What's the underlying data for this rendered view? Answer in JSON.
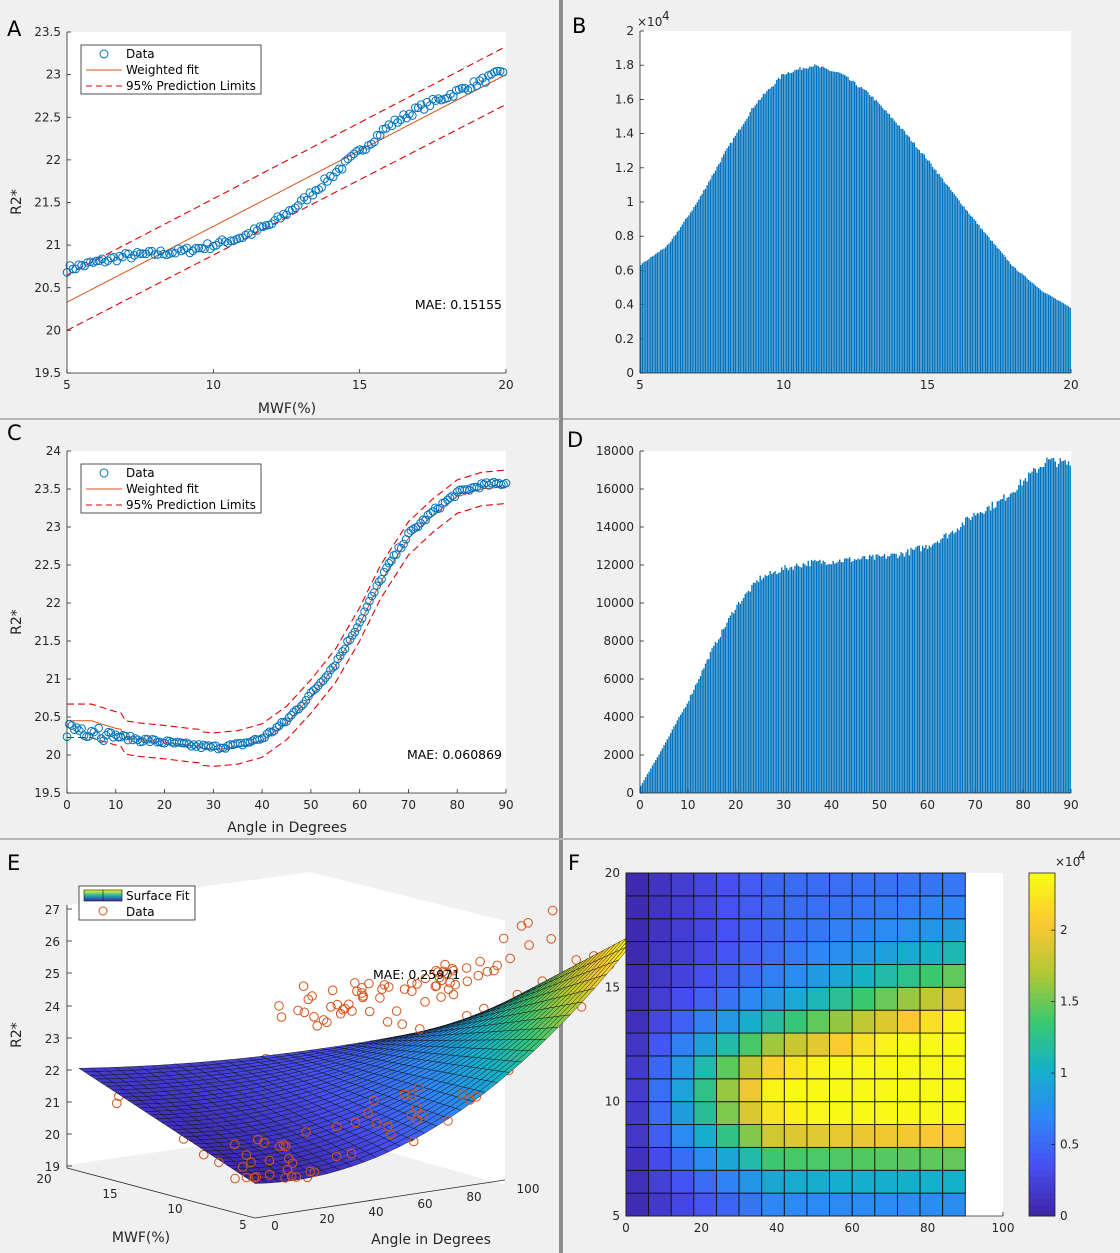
{
  "panels": {
    "A": {
      "label": "A",
      "chart_data": {
        "type": "scatter",
        "xlabel": "MWF(%)",
        "ylabel": "R2*",
        "xlim": [
          5,
          20
        ],
        "ylim": [
          19.5,
          23.5
        ],
        "xticks": [
          "5",
          "10",
          "15",
          "20"
        ],
        "yticks": [
          "19.5",
          "20",
          "20.5",
          "21",
          "21.5",
          "22",
          "22.5",
          "23",
          "23.5"
        ],
        "legend": [
          "Data",
          "Weighted fit",
          "95% Prediction Limits"
        ],
        "legend_position": "top-left",
        "annotation": "MAE: 0.15155",
        "fit_line": {
          "x": [
            5,
            20
          ],
          "y": [
            20.33,
            23.0
          ]
        },
        "prediction_limits": {
          "upper": [
            20.65,
            23.33
          ],
          "lower": [
            20.0,
            22.65
          ]
        },
        "data_trend": {
          "x": [
            5,
            6,
            7,
            8,
            9,
            10,
            11,
            12,
            13,
            14,
            15,
            16,
            17,
            18,
            19,
            20
          ],
          "y": [
            20.72,
            20.8,
            20.87,
            20.9,
            20.93,
            21.0,
            21.1,
            21.25,
            21.5,
            21.8,
            22.1,
            22.4,
            22.6,
            22.75,
            22.9,
            23.05
          ]
        }
      }
    },
    "B": {
      "label": "B",
      "chart_data": {
        "type": "bar",
        "xlim": [
          5,
          20
        ],
        "ylim": [
          0,
          20000
        ],
        "xticks": [
          "5",
          "10",
          "15",
          "20"
        ],
        "yticks": [
          "0",
          "0.2",
          "0.4",
          "0.6",
          "0.8",
          "1",
          "1.2",
          "1.4",
          "1.6",
          "1.8",
          "2"
        ],
        "exponent": "×10",
        "exponent_power": "4",
        "bin_centers": [
          5,
          6,
          7,
          8,
          9,
          10,
          11,
          12,
          13,
          14,
          15,
          16,
          17,
          18,
          19,
          20
        ],
        "values": [
          6300,
          7500,
          10000,
          13000,
          15700,
          17500,
          18000,
          17500,
          16300,
          14500,
          12500,
          10300,
          8200,
          6200,
          4800,
          3800
        ]
      }
    },
    "C": {
      "label": "C",
      "chart_data": {
        "type": "scatter",
        "xlabel": "Angle in Degrees",
        "ylabel": "R2*",
        "xlim": [
          0,
          90
        ],
        "ylim": [
          19.5,
          24
        ],
        "xticks": [
          "0",
          "10",
          "20",
          "30",
          "40",
          "50",
          "60",
          "70",
          "80",
          "90"
        ],
        "yticks": [
          "19.5",
          "20",
          "20.5",
          "21",
          "21.5",
          "22",
          "22.5",
          "23",
          "23.5",
          "24"
        ],
        "legend": [
          "Data",
          "Weighted fit",
          "95% Prediction Limits"
        ],
        "legend_position": "top-left",
        "annotation": "MAE: 0.060869",
        "data_trend": {
          "x": [
            0,
            5,
            10,
            15,
            20,
            25,
            30,
            35,
            40,
            45,
            50,
            55,
            60,
            65,
            70,
            75,
            80,
            85,
            90
          ],
          "y": [
            20.35,
            20.35,
            20.25,
            20.2,
            20.17,
            20.13,
            20.1,
            20.13,
            20.22,
            20.45,
            20.8,
            21.2,
            21.75,
            22.4,
            22.9,
            23.2,
            23.45,
            23.55,
            23.58
          ]
        },
        "band_halfwidth": 0.22
      }
    },
    "D": {
      "label": "D",
      "chart_data": {
        "type": "bar",
        "xlim": [
          0,
          90
        ],
        "ylim": [
          0,
          18000
        ],
        "xticks": [
          "0",
          "10",
          "20",
          "30",
          "40",
          "50",
          "60",
          "70",
          "80",
          "90"
        ],
        "yticks": [
          "0",
          "2000",
          "4000",
          "6000",
          "8000",
          "10000",
          "12000",
          "14000",
          "16000",
          "18000"
        ],
        "bin_centers": [
          0,
          5,
          10,
          15,
          20,
          25,
          30,
          35,
          40,
          45,
          50,
          55,
          60,
          65,
          70,
          75,
          80,
          85,
          90
        ],
        "values": [
          300,
          2500,
          4800,
          7500,
          9800,
          11300,
          11800,
          12100,
          12200,
          12300,
          12400,
          12600,
          13000,
          13700,
          14700,
          15300,
          16400,
          17500,
          17300
        ]
      }
    },
    "E": {
      "label": "E",
      "chart_data": {
        "type": "surface",
        "xlabel": "Angle in Degrees",
        "ylabel": "MWF(%)",
        "zlabel": "R2*",
        "xticks": [
          "0",
          "20",
          "40",
          "60",
          "80",
          "100"
        ],
        "yticks": [
          "5",
          "10",
          "15",
          "20"
        ],
        "zticks": [
          "19",
          "20",
          "21",
          "22",
          "23",
          "24",
          "25",
          "26",
          "27"
        ],
        "legend": [
          "Surface Fit",
          "Data"
        ],
        "annotation": "MAE: 0.25971"
      }
    },
    "F": {
      "label": "F",
      "chart_data": {
        "type": "heatmap",
        "xlim": [
          0,
          100
        ],
        "ylim": [
          5,
          20
        ],
        "xticks": [
          "0",
          "20",
          "40",
          "60",
          "80",
          "100"
        ],
        "yticks": [
          "5",
          "10",
          "15",
          "20"
        ],
        "colorbar_ticks": [
          "0",
          "0.5",
          "1",
          "1.5",
          "2"
        ],
        "colorbar_exponent": "×10",
        "colorbar_power": "4",
        "colorbar_max": 24000,
        "grid_x_edges": [
          0,
          6,
          12,
          18,
          24,
          30,
          36,
          42,
          48,
          54,
          60,
          66,
          72,
          78,
          84,
          90
        ],
        "grid_y_edges": [
          5,
          6,
          7,
          8,
          9,
          10,
          11,
          12,
          13,
          14,
          15,
          16,
          17,
          18,
          19,
          20
        ]
      }
    }
  },
  "colors": {
    "data": "#0072bd",
    "fit": "#d95319",
    "limits": "#e00000",
    "bar": "#0072bd"
  }
}
